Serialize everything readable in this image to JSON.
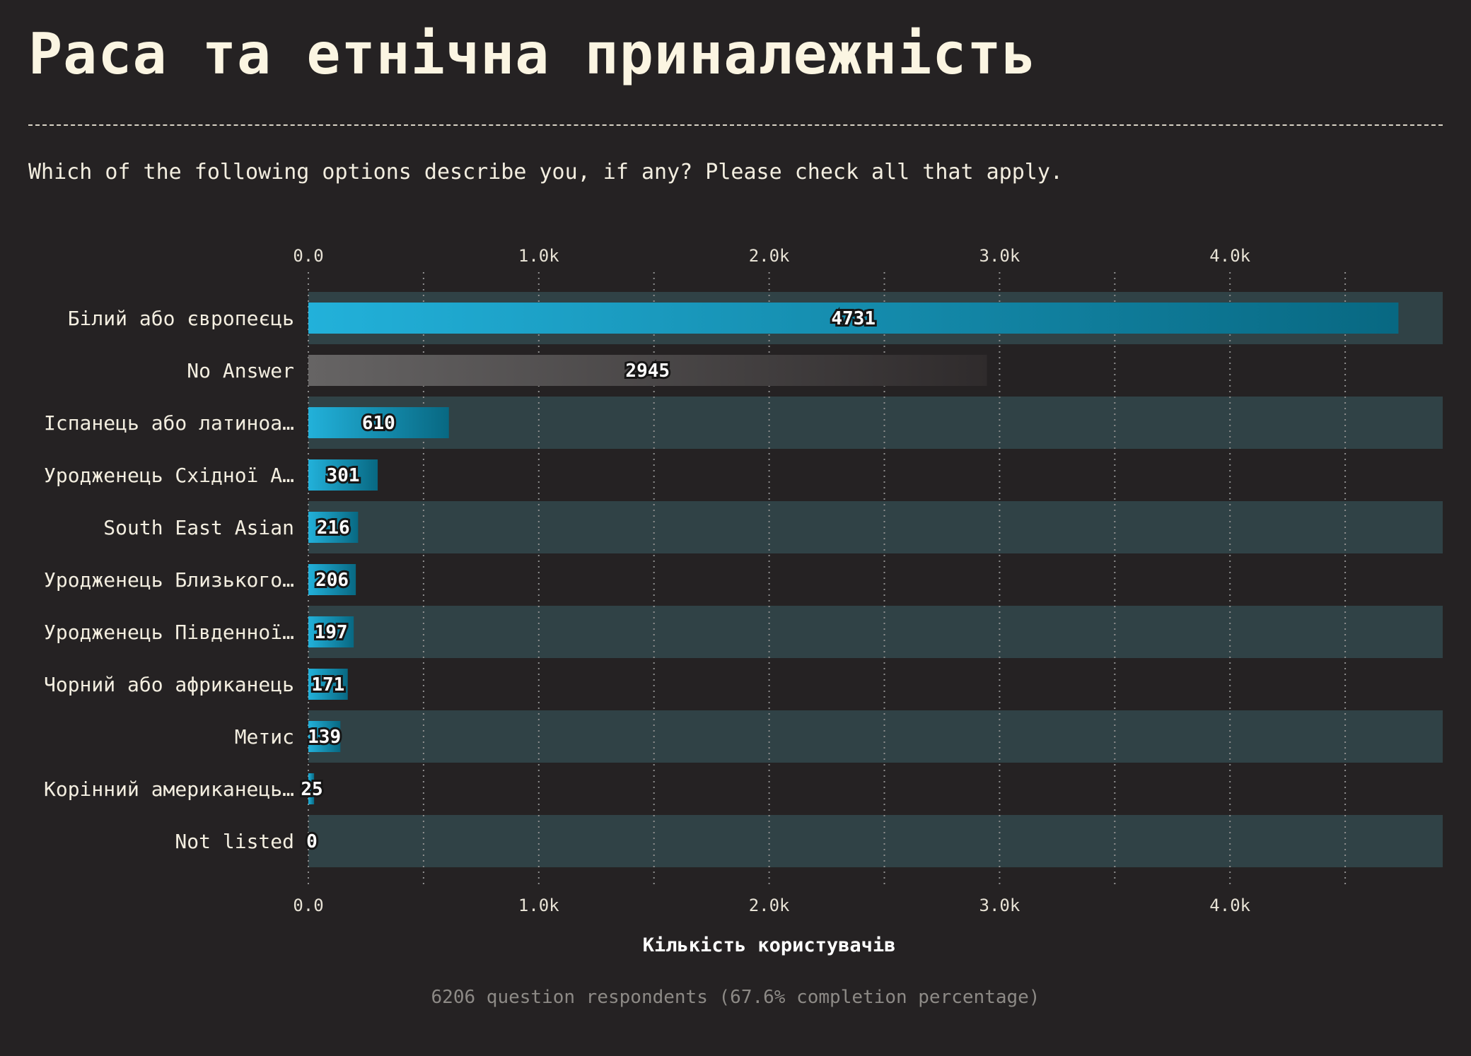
{
  "title": "Раса та етнічна приналежність",
  "question": "Which of the following options describe you, if any? Please check all that apply.",
  "footer": "6206 question respondents (67.6% completion percentage)",
  "colors": {
    "background": "#252223",
    "band": "#304246",
    "bar_start": "#22b1da",
    "bar_end": "#086882",
    "no_answer_start": "#666464",
    "no_answer_end": "#2f2b2c"
  },
  "chart_data": {
    "type": "bar",
    "orientation": "horizontal",
    "categories": [
      "Білий або європеєць",
      "No Answer",
      "Іспанець або латиноа…",
      "Уродженець Східної А…",
      "South East Asian",
      "Уродженець Близького…",
      "Уродженець Південної…",
      "Чорний або африканець",
      "Метис",
      "Корінний американець…",
      "Not listed"
    ],
    "values": [
      4731,
      2945,
      610,
      301,
      216,
      206,
      197,
      171,
      139,
      25,
      0
    ],
    "xlim": [
      0,
      4920
    ],
    "ticks": [
      0,
      1000,
      2000,
      3000,
      4000
    ],
    "tick_labels": [
      "0.0",
      "1.0k",
      "2.0k",
      "3.0k",
      "4.0k"
    ],
    "xlabel": "Кількість користувачів",
    "grid": "vertical dotted",
    "tick_axes": [
      "top",
      "bottom"
    ]
  }
}
